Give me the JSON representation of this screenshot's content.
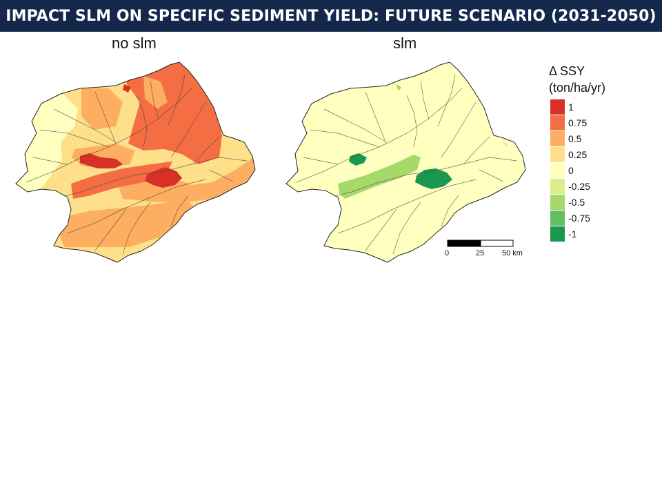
{
  "title": "IMPACT SLM ON SPECIFIC SEDIMENT YIELD: FUTURE SCENARIO (2031-2050)",
  "panels": {
    "left": {
      "label": "no slm"
    },
    "right": {
      "label": "slm"
    }
  },
  "legend": {
    "title_line1": "Δ SSY",
    "title_line2": "(ton/ha/yr)",
    "classes": [
      {
        "label": "1",
        "color": "#d73027"
      },
      {
        "label": "0.75",
        "color": "#f46d43"
      },
      {
        "label": "0.5",
        "color": "#fdae61"
      },
      {
        "label": "0.25",
        "color": "#fee08b"
      },
      {
        "label": "0",
        "color": "#ffffbf"
      },
      {
        "label": "-0.25",
        "color": "#d9ef8b"
      },
      {
        "label": "-0.5",
        "color": "#a6d96a"
      },
      {
        "label": "-0.75",
        "color": "#66bd63"
      },
      {
        "label": "-1",
        "color": "#1a9850"
      }
    ]
  },
  "scale_bar": {
    "ticks": [
      "0",
      "25",
      "50 km"
    ]
  }
}
